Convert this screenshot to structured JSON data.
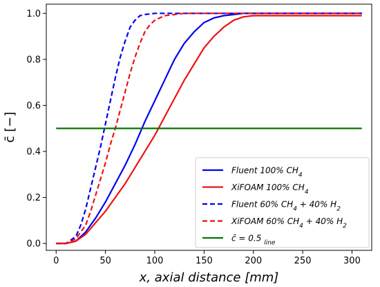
{
  "chart_data": {
    "type": "line",
    "xlabel": "x,  axial distance [mm]",
    "ylabel": "c̄ [−]",
    "xlim": [
      -10,
      320
    ],
    "ylim": [
      -0.03,
      1.04
    ],
    "x_ticks": [
      0,
      50,
      100,
      150,
      200,
      250,
      300
    ],
    "y_ticks": [
      0.0,
      0.2,
      0.4,
      0.6,
      0.8,
      1.0
    ],
    "x_tick_labels": [
      "0",
      "50",
      "100",
      "150",
      "200",
      "250",
      "300"
    ],
    "y_tick_labels": [
      "0.0",
      "0.2",
      "0.4",
      "0.6",
      "0.8",
      "1.0"
    ],
    "grid": false,
    "legend_position": "bottom-right",
    "series": [
      {
        "name": "Fluent 100% CH4",
        "legend_parts": [
          "Fluent 100% CH",
          "4"
        ],
        "color": "#0000ee",
        "style": "solid",
        "x": [
          0,
          10,
          20,
          30,
          40,
          50,
          60,
          70,
          80,
          90,
          100,
          110,
          120,
          130,
          140,
          150,
          160,
          170,
          180,
          190,
          200,
          220,
          250,
          280,
          310
        ],
        "y": [
          0.0,
          0.0,
          0.01,
          0.05,
          0.11,
          0.18,
          0.26,
          0.34,
          0.43,
          0.53,
          0.62,
          0.71,
          0.8,
          0.87,
          0.92,
          0.96,
          0.98,
          0.99,
          0.995,
          1.0,
          1.0,
          1.0,
          1.0,
          1.0,
          1.0
        ]
      },
      {
        "name": "XiFOAM 100% CH4",
        "legend_parts": [
          "XiFOAM 100% CH",
          "4"
        ],
        "color": "#ee1111",
        "style": "solid",
        "x": [
          0,
          10,
          20,
          30,
          40,
          50,
          60,
          70,
          80,
          90,
          100,
          110,
          120,
          130,
          140,
          150,
          160,
          170,
          180,
          190,
          200,
          220,
          250,
          280,
          310
        ],
        "y": [
          0.0,
          0.0,
          0.01,
          0.04,
          0.09,
          0.14,
          0.2,
          0.26,
          0.33,
          0.4,
          0.47,
          0.55,
          0.63,
          0.71,
          0.78,
          0.85,
          0.9,
          0.94,
          0.97,
          0.985,
          0.99,
          0.99,
          0.99,
          0.99,
          0.99
        ]
      },
      {
        "name": "Fluent 60% CH4 + 40% H2",
        "legend_parts": [
          "Fluent 60% CH",
          "4",
          " + 40% H",
          "2"
        ],
        "color": "#0000ee",
        "style": "dashed",
        "x": [
          0,
          10,
          20,
          25,
          30,
          35,
          40,
          45,
          50,
          55,
          60,
          65,
          70,
          75,
          80,
          85,
          90,
          100,
          110,
          130,
          160,
          200,
          250,
          310
        ],
        "y": [
          0.0,
          0.0,
          0.03,
          0.08,
          0.15,
          0.24,
          0.33,
          0.42,
          0.52,
          0.62,
          0.72,
          0.81,
          0.88,
          0.94,
          0.97,
          0.99,
          0.995,
          1.0,
          1.0,
          1.0,
          1.0,
          1.0,
          1.0,
          1.0
        ]
      },
      {
        "name": "XiFOAM 60% CH4 + 40% H2",
        "legend_parts": [
          "XiFOAM 60% CH",
          "4",
          " + 40% H",
          "2"
        ],
        "color": "#ee1111",
        "style": "dashed",
        "x": [
          0,
          10,
          20,
          30,
          35,
          40,
          45,
          50,
          55,
          60,
          65,
          70,
          75,
          80,
          85,
          90,
          95,
          100,
          110,
          120,
          130,
          160,
          200,
          250,
          310
        ],
        "y": [
          0.0,
          0.0,
          0.02,
          0.08,
          0.14,
          0.21,
          0.28,
          0.35,
          0.43,
          0.5,
          0.58,
          0.66,
          0.74,
          0.81,
          0.87,
          0.92,
          0.95,
          0.97,
          0.99,
          0.995,
          1.0,
          1.0,
          1.0,
          1.0,
          1.0
        ]
      },
      {
        "name": "c̄ = 0.5 line",
        "legend_parts": [
          "c̄ = 0.5 ",
          "line"
        ],
        "color": "#007700",
        "style": "solid",
        "x": [
          0,
          310
        ],
        "y": [
          0.5,
          0.5
        ]
      }
    ]
  }
}
